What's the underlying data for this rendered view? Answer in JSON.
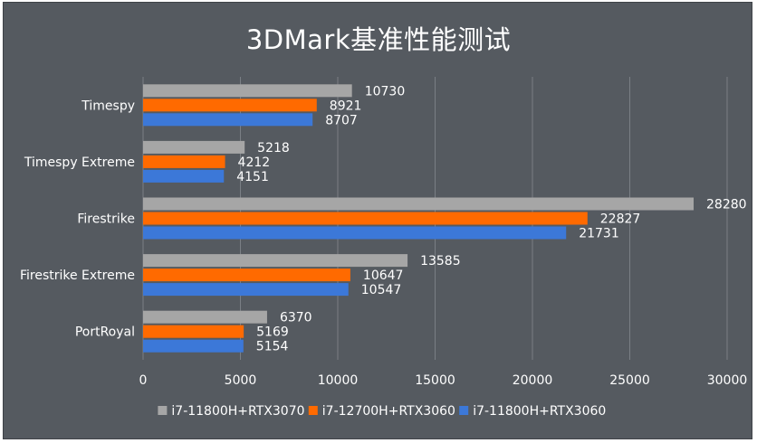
{
  "chart_data": {
    "type": "bar",
    "orientation": "horizontal",
    "title": "3DMark基准性能测试",
    "categories": [
      "Timespy",
      "Timespy Extreme",
      "Firestrike",
      "Firestrike Extreme",
      "PortRoyal"
    ],
    "series": [
      {
        "name": "i7-11800H+RTX3070",
        "color": "#a6a6a6",
        "values": [
          10730,
          5218,
          28280,
          13585,
          6370
        ]
      },
      {
        "name": "i7-12700H+RTX3060",
        "color": "#ff6a00",
        "values": [
          8921,
          4212,
          22827,
          10647,
          5169
        ]
      },
      {
        "name": "i7-11800H+RTX3060",
        "color": "#3c78d8",
        "values": [
          8707,
          4151,
          21731,
          10547,
          5154
        ]
      }
    ],
    "xlim": [
      0,
      30000
    ],
    "xticks": [
      "0",
      "5000",
      "10000",
      "15000",
      "20000",
      "25000",
      "30000"
    ],
    "grid": true,
    "legend": "bottom",
    "background": "#555a60",
    "gridline_color": "#7a7f85"
  }
}
